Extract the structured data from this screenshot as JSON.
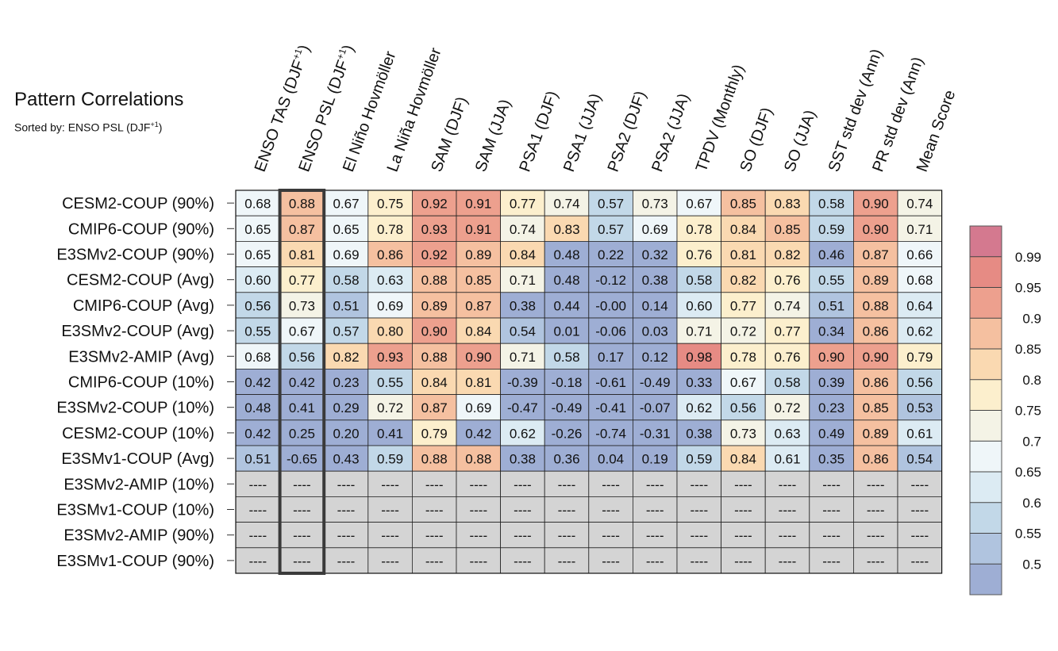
{
  "title": "Pattern Correlations",
  "subtitle_prefix": "Sorted by: ENSO PSL (DJF",
  "subtitle_sup": "+1",
  "subtitle_suffix": ")",
  "chart_data": {
    "type": "heatmap",
    "columns": [
      {
        "label": "ENSO TAS (DJF",
        "sup": "+1",
        "tail": ")"
      },
      {
        "label": "ENSO PSL (DJF",
        "sup": "+1",
        "tail": ")"
      },
      {
        "label": "El Niño Hovmöller"
      },
      {
        "label": "La Niña Hovmöller"
      },
      {
        "label": "SAM (DJF)"
      },
      {
        "label": "SAM (JJA)"
      },
      {
        "label": "PSA1 (DJF)"
      },
      {
        "label": "PSA1 (JJA)"
      },
      {
        "label": "PSA2 (DJF)"
      },
      {
        "label": "PSA2 (JJA)"
      },
      {
        "label": "TPDV (Monthly)"
      },
      {
        "label": "SO (DJF)"
      },
      {
        "label": "SO (JJA)"
      },
      {
        "label": "SST std dev (Ann)"
      },
      {
        "label": "PR std dev (Ann)"
      },
      {
        "label": "Mean Score"
      }
    ],
    "sorted_column": 1,
    "rows": [
      "CESM2-COUP (90%)",
      "CMIP6-COUP (90%)",
      "E3SMv2-COUP (90%)",
      "CESM2-COUP (Avg)",
      "CMIP6-COUP (Avg)",
      "E3SMv2-COUP (Avg)",
      "E3SMv2-AMIP (Avg)",
      "CMIP6-COUP (10%)",
      "E3SMv2-COUP (10%)",
      "CESM2-COUP (10%)",
      "E3SMv1-COUP (Avg)",
      "E3SMv2-AMIP (10%)",
      "E3SMv1-COUP (10%)",
      "E3SMv2-AMIP (90%)",
      "E3SMv1-COUP (90%)"
    ],
    "values": [
      [
        "0.68",
        "0.88",
        "0.67",
        "0.75",
        "0.92",
        "0.91",
        "0.77",
        "0.74",
        "0.57",
        "0.73",
        "0.67",
        "0.85",
        "0.83",
        "0.58",
        "0.90",
        "0.74"
      ],
      [
        "0.65",
        "0.87",
        "0.65",
        "0.78",
        "0.93",
        "0.91",
        "0.74",
        "0.83",
        "0.57",
        "0.69",
        "0.78",
        "0.84",
        "0.85",
        "0.59",
        "0.90",
        "0.71"
      ],
      [
        "0.65",
        "0.81",
        "0.69",
        "0.86",
        "0.92",
        "0.89",
        "0.84",
        "0.48",
        "0.22",
        "0.32",
        "0.76",
        "0.81",
        "0.82",
        "0.46",
        "0.87",
        "0.66"
      ],
      [
        "0.60",
        "0.77",
        "0.58",
        "0.63",
        "0.88",
        "0.85",
        "0.71",
        "0.48",
        "-0.12",
        "0.38",
        "0.58",
        "0.82",
        "0.76",
        "0.55",
        "0.89",
        "0.68"
      ],
      [
        "0.56",
        "0.73",
        "0.51",
        "0.69",
        "0.89",
        "0.87",
        "0.38",
        "0.44",
        "-0.00",
        "0.14",
        "0.60",
        "0.77",
        "0.74",
        "0.51",
        "0.88",
        "0.64"
      ],
      [
        "0.55",
        "0.67",
        "0.57",
        "0.80",
        "0.90",
        "0.84",
        "0.54",
        "0.01",
        "-0.06",
        "0.03",
        "0.71",
        "0.72",
        "0.77",
        "0.34",
        "0.86",
        "0.62"
      ],
      [
        "0.68",
        "0.56",
        "0.82",
        "0.93",
        "0.88",
        "0.90",
        "0.71",
        "0.58",
        "0.17",
        "0.12",
        "0.98",
        "0.78",
        "0.76",
        "0.90",
        "0.90",
        "0.79"
      ],
      [
        "0.42",
        "0.42",
        "0.23",
        "0.55",
        "0.84",
        "0.81",
        "-0.39",
        "-0.18",
        "-0.61",
        "-0.49",
        "0.33",
        "0.67",
        "0.58",
        "0.39",
        "0.86",
        "0.56"
      ],
      [
        "0.48",
        "0.41",
        "0.29",
        "0.72",
        "0.87",
        "0.69",
        "-0.47",
        "-0.49",
        "-0.41",
        "-0.07",
        "0.62",
        "0.56",
        "0.72",
        "0.23",
        "0.85",
        "0.53"
      ],
      [
        "0.42",
        "0.25",
        "0.20",
        "0.41",
        "0.79",
        "0.42",
        "0.62",
        "-0.26",
        "-0.74",
        "-0.31",
        "0.38",
        "0.73",
        "0.63",
        "0.49",
        "0.89",
        "0.61"
      ],
      [
        "0.51",
        "-0.65",
        "0.43",
        "0.59",
        "0.88",
        "0.88",
        "0.38",
        "0.36",
        "0.04",
        "0.19",
        "0.59",
        "0.84",
        "0.61",
        "0.35",
        "0.86",
        "0.54"
      ],
      [
        "----",
        "----",
        "----",
        "----",
        "----",
        "----",
        "----",
        "----",
        "----",
        "----",
        "----",
        "----",
        "----",
        "----",
        "----",
        "----"
      ],
      [
        "----",
        "----",
        "----",
        "----",
        "----",
        "----",
        "----",
        "----",
        "----",
        "----",
        "----",
        "----",
        "----",
        "----",
        "----",
        "----"
      ],
      [
        "----",
        "----",
        "----",
        "----",
        "----",
        "----",
        "----",
        "----",
        "----",
        "----",
        "----",
        "----",
        "----",
        "----",
        "----",
        "----"
      ],
      [
        "----",
        "----",
        "----",
        "----",
        "----",
        "----",
        "----",
        "----",
        "----",
        "----",
        "----",
        "----",
        "----",
        "----",
        "----",
        "----"
      ]
    ],
    "missing_color": "#d4d4d4",
    "colorbar": {
      "ticks": [
        "0.99",
        "0.95",
        "0.9",
        "0.85",
        "0.8",
        "0.75",
        "0.7",
        "0.65",
        "0.6",
        "0.55",
        "0.5"
      ],
      "bounds": [
        0.5,
        0.55,
        0.6,
        0.65,
        0.7,
        0.75,
        0.8,
        0.85,
        0.9,
        0.95,
        0.99
      ],
      "colors": [
        "#9eaed4",
        "#b0c4df",
        "#c2d8e8",
        "#dcebf3",
        "#eff6f9",
        "#f4f3e6",
        "#fcefcd",
        "#fad9b1",
        "#f5c0a0",
        "#eda08e",
        "#e68b84",
        "#d4798f"
      ]
    }
  }
}
